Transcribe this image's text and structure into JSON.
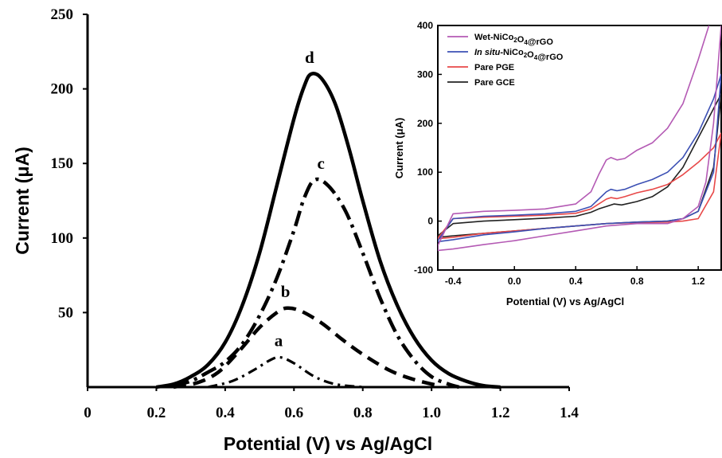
{
  "chart_data": [
    {
      "type": "line",
      "xlabel": "Potential (V) vs Ag/AgCl",
      "ylabel": "Current (μA)",
      "xlim": [
        0,
        1.4
      ],
      "ylim": [
        0,
        250
      ],
      "x_ticks": [
        "0",
        "0.2",
        "0.4",
        "0.6",
        "0.8",
        "1.0",
        "1.2",
        "1.4"
      ],
      "y_ticks": [
        "50",
        "100",
        "150",
        "200",
        "250"
      ],
      "grid": false,
      "series": [
        {
          "name": "a",
          "peak_x": 0.56,
          "peak_y": 20,
          "x": [
            0.35,
            0.42,
            0.48,
            0.53,
            0.56,
            0.6,
            0.66,
            0.72,
            0.8
          ],
          "y": [
            0,
            4,
            11,
            18,
            20,
            16,
            7,
            2,
            0
          ]
        },
        {
          "name": "b",
          "peak_x": 0.58,
          "peak_y": 53,
          "x": [
            0.25,
            0.32,
            0.38,
            0.44,
            0.5,
            0.55,
            0.58,
            0.62,
            0.68,
            0.74,
            0.8,
            0.88,
            0.95,
            1.02
          ],
          "y": [
            0,
            3,
            10,
            24,
            40,
            50,
            53,
            51,
            43,
            32,
            22,
            11,
            5,
            1
          ]
        },
        {
          "name": "c",
          "peak_x": 0.66,
          "peak_y": 139,
          "x": [
            0.25,
            0.3,
            0.35,
            0.4,
            0.45,
            0.5,
            0.55,
            0.6,
            0.63,
            0.66,
            0.7,
            0.75,
            0.8,
            0.85,
            0.9,
            0.95,
            1.0,
            1.05,
            1.08
          ],
          "y": [
            1,
            4,
            10,
            17,
            29,
            48,
            73,
            105,
            127,
            139,
            135,
            118,
            90,
            60,
            35,
            18,
            7,
            2,
            0
          ]
        },
        {
          "name": "d",
          "peak_x": 0.65,
          "peak_y": 210,
          "x": [
            0.2,
            0.25,
            0.3,
            0.35,
            0.4,
            0.45,
            0.5,
            0.55,
            0.6,
            0.63,
            0.65,
            0.68,
            0.72,
            0.76,
            0.8,
            0.85,
            0.9,
            0.95,
            1.0,
            1.05,
            1.1,
            1.15,
            1.2
          ],
          "y": [
            0,
            2,
            7,
            15,
            30,
            55,
            90,
            135,
            180,
            202,
            210,
            207,
            190,
            160,
            125,
            85,
            55,
            33,
            18,
            9,
            4,
            1,
            0
          ]
        }
      ],
      "annotations": [
        "a",
        "b",
        "c",
        "d"
      ]
    },
    {
      "type": "line",
      "xlabel": "Potential (V) vs Ag/AgCl",
      "ylabel": "Current (μA)",
      "xlim": [
        -0.5,
        1.35
      ],
      "ylim": [
        -100,
        400
      ],
      "x_ticks": [
        "-0.4",
        "0.0",
        "0.4",
        "0.8",
        "1.2"
      ],
      "y_ticks": [
        "400",
        "300",
        "200",
        "100",
        "0",
        "-100"
      ],
      "legend_position": "top-left",
      "series": [
        {
          "name": "Wet-NiCo2O4@rGO",
          "color": "#b45ab4",
          "x": [
            -0.5,
            -0.4,
            -0.2,
            0.0,
            0.2,
            0.4,
            0.5,
            0.55,
            0.6,
            0.63,
            0.67,
            0.72,
            0.8,
            0.9,
            1.0,
            1.1,
            1.2,
            1.27,
            1.3,
            1.35,
            1.3,
            1.25,
            1.2,
            1.1,
            1.0,
            0.8,
            0.6,
            0.4,
            0.2,
            0.0,
            -0.2,
            -0.4,
            -0.5
          ],
          "y": [
            -50,
            15,
            20,
            22,
            25,
            35,
            60,
            95,
            125,
            130,
            125,
            128,
            145,
            160,
            190,
            240,
            330,
            400,
            420,
            400,
            200,
            80,
            30,
            5,
            -5,
            -5,
            -10,
            -20,
            -30,
            -40,
            -48,
            -57,
            -60
          ]
        },
        {
          "name": "In situ-NiCo2O4@rGO",
          "color": "#3c50b4",
          "x": [
            -0.5,
            -0.4,
            -0.2,
            0.0,
            0.2,
            0.4,
            0.5,
            0.55,
            0.6,
            0.63,
            0.67,
            0.72,
            0.8,
            0.9,
            1.0,
            1.1,
            1.2,
            1.3,
            1.35,
            1.3,
            1.2,
            1.1,
            1.0,
            0.8,
            0.6,
            0.4,
            0.2,
            0.0,
            -0.2,
            -0.4,
            -0.5
          ],
          "y": [
            -40,
            5,
            10,
            12,
            15,
            20,
            30,
            45,
            60,
            65,
            62,
            65,
            75,
            85,
            100,
            130,
            180,
            250,
            300,
            100,
            20,
            5,
            0,
            -2,
            -5,
            -10,
            -15,
            -22,
            -28,
            -38,
            -42
          ]
        },
        {
          "name": "Pare PGE",
          "color": "#e84848",
          "x": [
            -0.5,
            -0.4,
            -0.2,
            0.0,
            0.2,
            0.4,
            0.5,
            0.55,
            0.6,
            0.63,
            0.67,
            0.72,
            0.8,
            0.9,
            1.0,
            1.1,
            1.2,
            1.3,
            1.35,
            1.3,
            1.2,
            1.1,
            1.0,
            0.8,
            0.6,
            0.4,
            0.2,
            0.0,
            -0.2,
            -0.4,
            -0.5
          ],
          "y": [
            -35,
            5,
            8,
            10,
            12,
            16,
            25,
            35,
            45,
            48,
            46,
            50,
            58,
            65,
            75,
            95,
            120,
            150,
            180,
            60,
            5,
            0,
            -2,
            -3,
            -5,
            -10,
            -15,
            -20,
            -25,
            -33,
            -36
          ]
        },
        {
          "name": "Pare GCE",
          "color": "#222222",
          "x": [
            -0.5,
            -0.4,
            -0.2,
            0.0,
            0.2,
            0.4,
            0.5,
            0.55,
            0.6,
            0.65,
            0.7,
            0.8,
            0.9,
            1.0,
            1.1,
            1.2,
            1.3,
            1.35,
            1.3,
            1.2,
            1.1,
            1.0,
            0.8,
            0.6,
            0.4,
            0.2,
            0.0,
            -0.2,
            -0.4,
            -0.5
          ],
          "y": [
            -30,
            -5,
            0,
            3,
            6,
            10,
            18,
            25,
            30,
            35,
            33,
            40,
            50,
            70,
            110,
            170,
            230,
            260,
            110,
            20,
            5,
            0,
            -2,
            -5,
            -10,
            -15,
            -20,
            -25,
            -30,
            -33
          ]
        }
      ]
    }
  ]
}
